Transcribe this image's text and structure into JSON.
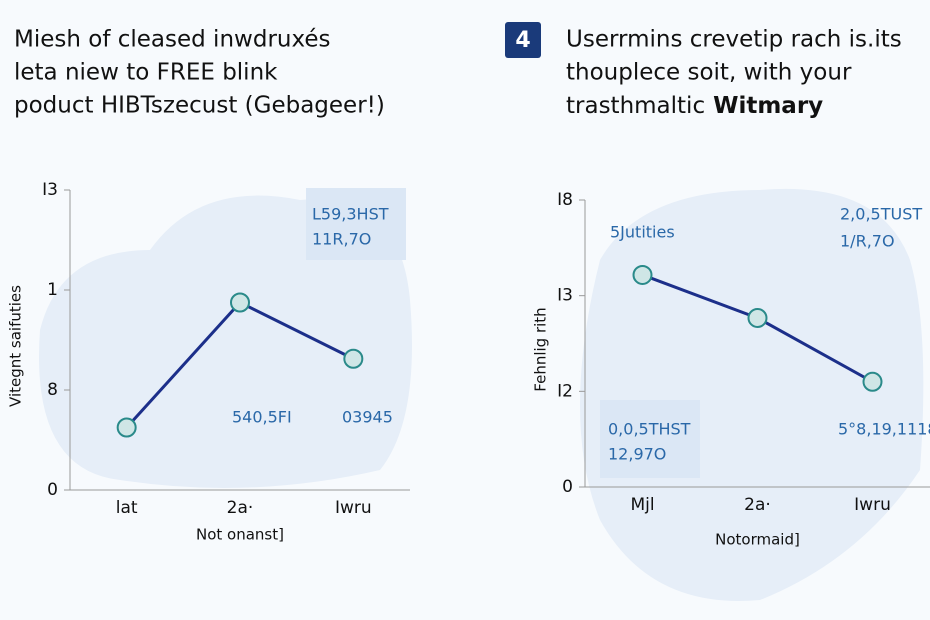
{
  "chart_data": [
    {
      "type": "line",
      "title": [
        "Miesh of cleased inwdruxés",
        "leta niew to  FREE blink",
        "poduct HIBTszecust (Gebageer!)"
      ],
      "y_label": "Vitegnt saifuties",
      "x_label": "Not onanst]",
      "categories": [
        "lat",
        "2a·",
        "Iwru"
      ],
      "series": [
        {
          "name": "Vitegnt saifuties",
          "color": "#1c2f8a",
          "values": [
            5,
            15,
            10.5
          ]
        }
      ],
      "ylim": [
        0,
        24
      ],
      "yticks": [
        0,
        8,
        {
          "value": 16,
          "label": "1"
        },
        {
          "value": 24,
          "label": "I3"
        }
      ],
      "annotations": [
        "L59,3HST",
        "11R,7O",
        "540,5FI",
        "03945"
      ]
    },
    {
      "type": "line",
      "badge": "4",
      "title": [
        "Userrmins crevetip rach is.its",
        "thouplece soit, with your",
        "trasthmaltic"
      ],
      "title_bold": "Witmary",
      "y_label": "Fehnlig rith",
      "x_label": "Notormaid]",
      "categories": [
        "Mjl",
        "2a·",
        "Iwru"
      ],
      "series": [
        {
          "name": "Fehnlig rith",
          "color": "#1c2f8a",
          "values": [
            13.3,
            10.6,
            6.6
          ]
        }
      ],
      "ylim": [
        0,
        18
      ],
      "yticks": [
        0,
        {
          "value": 6,
          "label": "I2"
        },
        {
          "value": 12,
          "label": "I3"
        },
        {
          "value": 18,
          "label": "I8"
        }
      ],
      "annotations": [
        "5Jutities",
        "2,0,5TUST",
        "1/R,7O",
        "0,0,5THST",
        "12,97O",
        "5°8,19,1118"
      ]
    }
  ]
}
